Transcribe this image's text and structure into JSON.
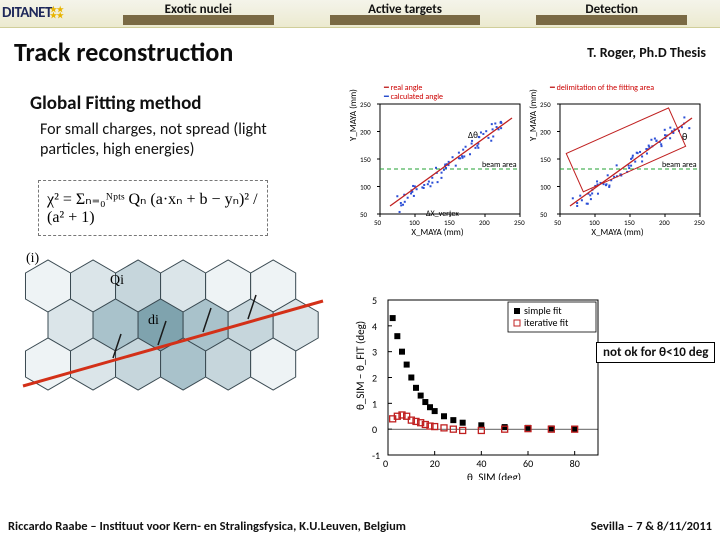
{
  "header": {
    "logo_text": "DITANET",
    "tabs": [
      {
        "label": "Exotic nuclei"
      },
      {
        "label": "Active targets"
      },
      {
        "label": "Detection"
      }
    ]
  },
  "title": "Track reconstruction",
  "attribution": "T. Roger, Ph.D Thesis",
  "subhead": "Global Fitting method",
  "description": "For small charges, not spread (light particles, high energies)",
  "equation": "χ² = Σₙ₌₀ᴺᵖᵗˢ Qₙ (a·xₙ + b − yₙ)² / (a² + 1)",
  "hex_diagram": {
    "type": "infographic",
    "label_i": "(i)",
    "node_labels": [
      "Qi",
      "di"
    ],
    "hex_fill_colors": [
      "#7fa3ae",
      "#a9c2cb",
      "#c6d6dc",
      "#dbe5e9",
      "#eef3f5"
    ],
    "edge_color": "#3a4a52",
    "fit_line_color": "#d33018",
    "perp_line_color": "#1a1a1a"
  },
  "scatter_left": {
    "type": "scatter",
    "xlabel": "X_MAYA (mm)",
    "ylabel": "Y_MAYA (mm)",
    "xlim": [
      50,
      250
    ],
    "ylim": [
      50,
      250
    ],
    "legend": [
      "real angle",
      "calculated angle"
    ],
    "legend_colors": [
      "#c02020",
      "#1840c8"
    ],
    "beam_line_color": "#20a030",
    "dtheta_label": "Δθ",
    "dx_label": "ΔX_vertex",
    "point_color": "#2c4fd6",
    "axis_color": "#000000",
    "background_color": "#ffffff"
  },
  "scatter_right": {
    "type": "scatter",
    "xlabel": "X_MAYA (mm)",
    "ylabel": "Y_MAYA (mm)",
    "xlim": [
      50,
      250
    ],
    "ylim": [
      50,
      250
    ],
    "legend": [
      "delimitation of the fitting area"
    ],
    "legend_colors": [
      "#c02020"
    ],
    "theta_label": "θ",
    "beam_line_color": "#20a030",
    "point_color": "#2c4fd6",
    "box_color": "#c02020",
    "background_color": "#ffffff"
  },
  "fit_plot": {
    "type": "scatter",
    "xlabel": "θ_SIM (deg)",
    "ylabel": "θ_SIM − θ_FIT (deg)",
    "xlim": [
      0,
      90
    ],
    "xtick_step": 20,
    "ylim": [
      -1,
      5
    ],
    "ytick_step": 1,
    "legend": [
      {
        "label": "simple fit",
        "marker": "square-filled",
        "color": "#000000"
      },
      {
        "label": "iterative fit",
        "marker": "square-open",
        "color": "#c02020"
      }
    ],
    "zero_line_color": "#000000",
    "background_color": "#ffffff",
    "series_simple": [
      [
        2,
        4.3
      ],
      [
        4,
        3.6
      ],
      [
        6,
        3.0
      ],
      [
        8,
        2.5
      ],
      [
        10,
        2.0
      ],
      [
        12,
        1.6
      ],
      [
        14,
        1.3
      ],
      [
        16,
        1.05
      ],
      [
        18,
        0.85
      ],
      [
        20,
        0.7
      ],
      [
        24,
        0.5
      ],
      [
        28,
        0.35
      ],
      [
        32,
        0.25
      ],
      [
        40,
        0.15
      ],
      [
        50,
        0.08
      ],
      [
        60,
        0.05
      ],
      [
        70,
        0.03
      ],
      [
        80,
        0.02
      ]
    ],
    "series_iterative": [
      [
        2,
        0.4
      ],
      [
        4,
        0.5
      ],
      [
        6,
        0.55
      ],
      [
        8,
        0.5
      ],
      [
        10,
        0.35
      ],
      [
        12,
        0.3
      ],
      [
        14,
        0.25
      ],
      [
        16,
        0.18
      ],
      [
        18,
        0.12
      ],
      [
        20,
        0.1
      ],
      [
        24,
        0.05
      ],
      [
        28,
        0.0
      ],
      [
        32,
        -0.05
      ],
      [
        40,
        -0.05
      ],
      [
        50,
        0.0
      ],
      [
        60,
        0.02
      ],
      [
        70,
        0.0
      ],
      [
        80,
        0.0
      ]
    ]
  },
  "annotation": "not ok for θ<10 deg",
  "footer": {
    "left": "Riccardo Raabe – Instituut voor Kern- en Stralingsfysica, K.U.Leuven, Belgium",
    "right": "Sevilla – 7 & 8/11/2011"
  },
  "colors": {
    "header_bg_top": "#f4f4ea",
    "header_bg_bottom": "#ecead0",
    "tab_bar": "#7a6a44"
  }
}
